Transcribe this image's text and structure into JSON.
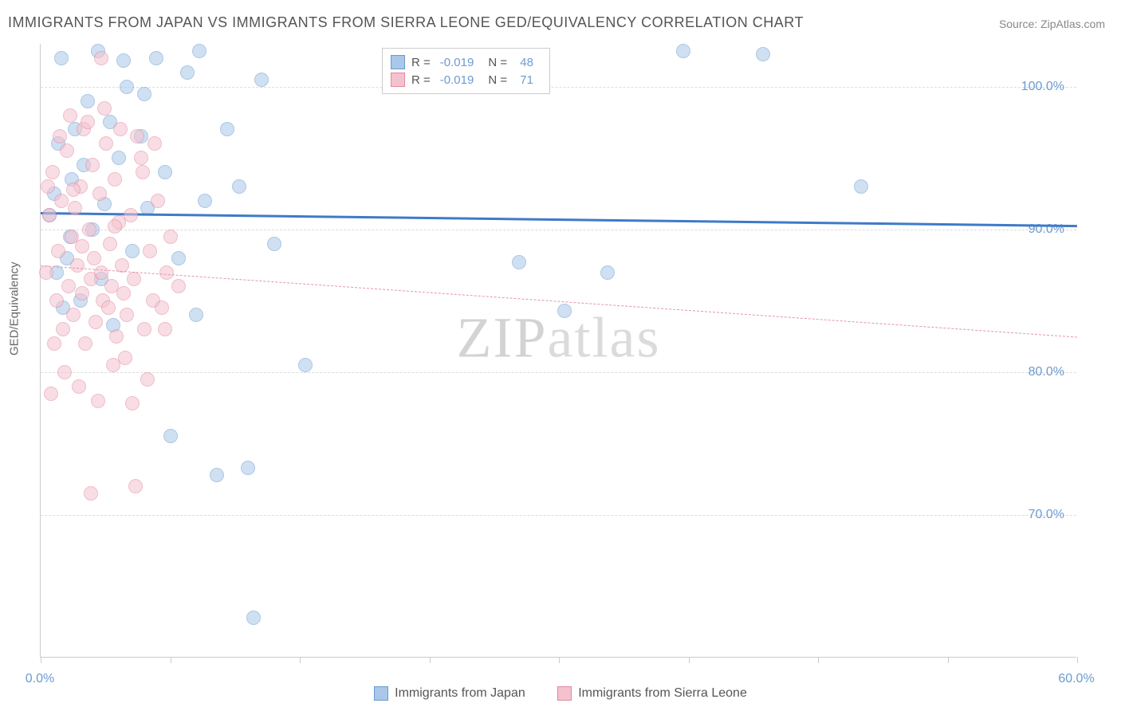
{
  "title": "IMMIGRANTS FROM JAPAN VS IMMIGRANTS FROM SIERRA LEONE GED/EQUIVALENCY CORRELATION CHART",
  "source": "Source: ZipAtlas.com",
  "watermark": {
    "bold": "ZIP",
    "light": "atlas"
  },
  "y_axis_label": "GED/Equivalency",
  "chart": {
    "type": "scatter",
    "background_color": "#ffffff",
    "grid_color": "#dddddd",
    "axis_color": "#cccccc",
    "xlim": [
      0,
      60
    ],
    "ylim": [
      60,
      103
    ],
    "x_ticks": [
      0,
      7.5,
      15,
      22.5,
      30,
      37.5,
      45,
      52.5,
      60
    ],
    "x_tick_labels": {
      "0": "0.0%",
      "60": "60.0%"
    },
    "y_ticks": [
      70,
      80,
      90,
      100
    ],
    "y_tick_labels": {
      "70": "70.0%",
      "80": "80.0%",
      "90": "90.0%",
      "100": "100.0%"
    },
    "marker_radius": 9,
    "marker_opacity": 0.55,
    "series": [
      {
        "name": "Immigrants from Japan",
        "color_fill": "#a9c7e8",
        "color_stroke": "#6b9bd1",
        "trend": {
          "x1": 0,
          "y1": 91.2,
          "x2": 60,
          "y2": 90.3,
          "width": 3,
          "dash": "solid",
          "color": "#3f7ac9"
        },
        "R": "-0.019",
        "N": "48",
        "points": [
          [
            0.5,
            91
          ],
          [
            0.8,
            92.5
          ],
          [
            1.0,
            96
          ],
          [
            1.2,
            102
          ],
          [
            1.5,
            88
          ],
          [
            1.8,
            93.5
          ],
          [
            2.0,
            97
          ],
          [
            2.3,
            85
          ],
          [
            2.5,
            94.5
          ],
          [
            3.0,
            90
          ],
          [
            3.3,
            102.5
          ],
          [
            3.5,
            86.5
          ],
          [
            4.0,
            97.5
          ],
          [
            4.2,
            83.3
          ],
          [
            4.5,
            95
          ],
          [
            5.0,
            100
          ],
          [
            5.3,
            88.5
          ],
          [
            5.8,
            96.5
          ],
          [
            6.2,
            91.5
          ],
          [
            6.7,
            102
          ],
          [
            7.2,
            94
          ],
          [
            7.5,
            75.5
          ],
          [
            8.0,
            88
          ],
          [
            8.5,
            101
          ],
          [
            9.0,
            84
          ],
          [
            9.5,
            92
          ],
          [
            10.2,
            72.8
          ],
          [
            10.8,
            97
          ],
          [
            11.5,
            93
          ],
          [
            12.0,
            73.3
          ],
          [
            12.3,
            62.8
          ],
          [
            12.8,
            100.5
          ],
          [
            13.5,
            89
          ],
          [
            15.3,
            80.5
          ],
          [
            9.2,
            102.5
          ],
          [
            27.7,
            87.7
          ],
          [
            30.3,
            84.3
          ],
          [
            32.8,
            87
          ],
          [
            37.2,
            102.5
          ],
          [
            41.8,
            102.3
          ],
          [
            47.5,
            93
          ],
          [
            4.8,
            101.8
          ],
          [
            2.7,
            99
          ],
          [
            6.0,
            99.5
          ],
          [
            1.7,
            89.5
          ],
          [
            3.7,
            91.8
          ],
          [
            0.9,
            87
          ],
          [
            1.3,
            84.5
          ]
        ]
      },
      {
        "name": "Immigrants from Sierra Leone",
        "color_fill": "#f4c2cf",
        "color_stroke": "#e488a0",
        "trend": {
          "x1": 0,
          "y1": 87.5,
          "x2": 60,
          "y2": 82.5,
          "width": 1.5,
          "dash": "dashed",
          "color": "#e595a9"
        },
        "R": "-0.019",
        "N": "71",
        "points": [
          [
            0.3,
            87
          ],
          [
            0.5,
            91
          ],
          [
            0.7,
            94
          ],
          [
            0.9,
            85
          ],
          [
            1.0,
            88.5
          ],
          [
            1.2,
            92
          ],
          [
            1.3,
            83
          ],
          [
            1.5,
            95.5
          ],
          [
            1.6,
            86
          ],
          [
            1.8,
            89.5
          ],
          [
            1.9,
            84
          ],
          [
            2.0,
            91.5
          ],
          [
            2.1,
            87.5
          ],
          [
            2.3,
            93
          ],
          [
            2.4,
            85.5
          ],
          [
            2.5,
            97
          ],
          [
            2.6,
            82
          ],
          [
            2.8,
            90
          ],
          [
            2.9,
            86.5
          ],
          [
            3.0,
            94.5
          ],
          [
            3.1,
            88
          ],
          [
            3.2,
            83.5
          ],
          [
            3.4,
            92.5
          ],
          [
            3.5,
            87
          ],
          [
            3.6,
            85
          ],
          [
            3.8,
            96
          ],
          [
            3.9,
            84.5
          ],
          [
            4.0,
            89
          ],
          [
            4.1,
            86
          ],
          [
            4.3,
            93.5
          ],
          [
            4.4,
            82.5
          ],
          [
            4.5,
            90.5
          ],
          [
            4.7,
            87.5
          ],
          [
            4.8,
            85.5
          ],
          [
            5.0,
            84
          ],
          [
            5.2,
            91
          ],
          [
            5.4,
            86.5
          ],
          [
            5.5,
            72
          ],
          [
            5.8,
            95
          ],
          [
            6.0,
            83
          ],
          [
            6.3,
            88.5
          ],
          [
            6.5,
            85
          ],
          [
            6.8,
            92
          ],
          [
            7.0,
            84.5
          ],
          [
            7.3,
            87
          ],
          [
            7.5,
            89.5
          ],
          [
            8.0,
            86
          ],
          [
            0.6,
            78.5
          ],
          [
            1.1,
            96.5
          ],
          [
            1.4,
            80
          ],
          [
            1.7,
            98
          ],
          [
            2.2,
            79
          ],
          [
            2.7,
            97.5
          ],
          [
            3.3,
            78
          ],
          [
            3.7,
            98.5
          ],
          [
            4.2,
            80.5
          ],
          [
            4.6,
            97
          ],
          [
            4.9,
            81
          ],
          [
            5.3,
            77.8
          ],
          [
            5.6,
            96.5
          ],
          [
            5.9,
            94
          ],
          [
            6.2,
            79.5
          ],
          [
            6.6,
            96
          ],
          [
            7.2,
            83
          ],
          [
            0.4,
            93
          ],
          [
            0.8,
            82
          ],
          [
            2.9,
            71.5
          ],
          [
            3.5,
            102
          ],
          [
            1.9,
            92.8
          ],
          [
            2.4,
            88.8
          ],
          [
            4.3,
            90.2
          ]
        ]
      }
    ]
  },
  "legend_top": {
    "label_R": "R =",
    "label_N": "N ="
  },
  "bottom_legend_labels": [
    "Immigrants from Japan",
    "Immigrants from Sierra Leone"
  ]
}
